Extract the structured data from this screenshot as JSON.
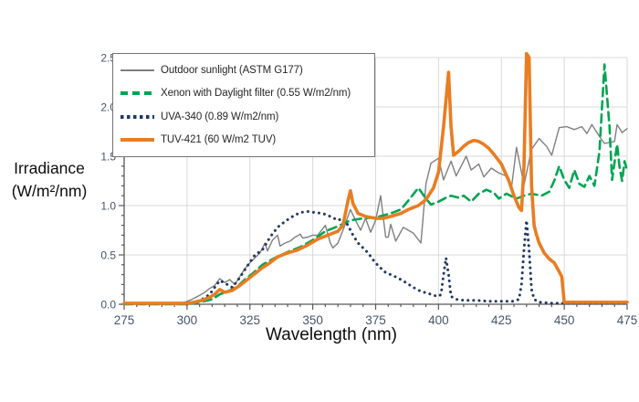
{
  "chart": {
    "y_axis_title_line1": "Irradiance",
    "y_axis_title_line2": "(W/m²/nm)",
    "x_axis_title": "Wavelength (nm)",
    "colors": {
      "grid": "#d9d9d9",
      "axis": "#595959",
      "tick_label": "#44546a",
      "legend_border": "#737373",
      "background": "#ffffff"
    }
  },
  "chart_data": {
    "type": "line",
    "title": "",
    "xlabel": "Wavelength (nm)",
    "ylabel": "Irradiance (W/m²/nm)",
    "xlim": [
      275,
      475
    ],
    "ylim": [
      0,
      2.5
    ],
    "x_ticks": [
      275,
      300,
      325,
      350,
      375,
      400,
      425,
      450,
      475
    ],
    "y_ticks": [
      "0.0",
      "0.5",
      "1.0",
      "1.5",
      "2.0",
      "2.5"
    ],
    "x_minor_step": 5,
    "y_minor_step": 0.1,
    "grid": true,
    "legend_position": "top-left-inside",
    "series": [
      {
        "name": "Outdoor sunlight (ASTM G177)",
        "color": "#7f7f7f",
        "style": "solid",
        "width": 1.4,
        "x": [
          275,
          290,
          295,
          298,
          300,
          302,
          305,
          307,
          309,
          311,
          313,
          315,
          317,
          319,
          321,
          323,
          325,
          327,
          329,
          331,
          332,
          334,
          336,
          337,
          339,
          341,
          343,
          345,
          346,
          348,
          350,
          352,
          355,
          357,
          358,
          360,
          362,
          365,
          367,
          369,
          371,
          373,
          375,
          377,
          379,
          380,
          381,
          383,
          386,
          388,
          390,
          393,
          395,
          397,
          400,
          402,
          405,
          407,
          409,
          411,
          413,
          416,
          418,
          421,
          424,
          427,
          429,
          431,
          434,
          437,
          440,
          443,
          445,
          448,
          451,
          454,
          457,
          459,
          461,
          464,
          466,
          468,
          470,
          471,
          473,
          475
        ],
        "y": [
          0,
          0,
          0,
          0.01,
          0.03,
          0.05,
          0.09,
          0.12,
          0.16,
          0.19,
          0.26,
          0.22,
          0.25,
          0.2,
          0.28,
          0.36,
          0.42,
          0.47,
          0.52,
          0.62,
          0.54,
          0.65,
          0.7,
          0.59,
          0.62,
          0.64,
          0.68,
          0.71,
          0.67,
          0.68,
          0.7,
          0.7,
          0.8,
          0.62,
          0.57,
          0.62,
          0.75,
          0.96,
          0.85,
          0.75,
          0.87,
          0.73,
          0.85,
          1.1,
          0.68,
          0.68,
          0.81,
          0.64,
          0.78,
          0.75,
          0.72,
          0.62,
          1.22,
          1.43,
          1.48,
          1.26,
          1.45,
          1.3,
          1.4,
          1.5,
          1.36,
          1.42,
          1.29,
          1.38,
          1.33,
          1.3,
          1.18,
          1.59,
          1.21,
          1.57,
          1.68,
          1.6,
          1.51,
          1.79,
          1.8,
          1.77,
          1.8,
          1.73,
          1.82,
          1.7,
          1.63,
          1.64,
          1.65,
          1.82,
          1.74,
          1.78
        ]
      },
      {
        "name": "Xenon with Daylight filter (0.55 W/m2/nm)",
        "color": "#00a551",
        "style": "dashed",
        "width": 2.6,
        "x": [
          275,
          295,
          300,
          305,
          310,
          313,
          316,
          320,
          323,
          326,
          330,
          335,
          340,
          345,
          350,
          355,
          360,
          365,
          370,
          375,
          378,
          381,
          385,
          388,
          392,
          395,
          397,
          400,
          403,
          405,
          408,
          410,
          413,
          416,
          419,
          422,
          424,
          427,
          431,
          434,
          437,
          441,
          444,
          446,
          448,
          450,
          452,
          454,
          456,
          458,
          460,
          462,
          464,
          466,
          468,
          469,
          471,
          472,
          473,
          474,
          475
        ],
        "y": [
          0,
          0,
          0,
          0.02,
          0.05,
          0.1,
          0.13,
          0.18,
          0.25,
          0.31,
          0.4,
          0.47,
          0.53,
          0.58,
          0.65,
          0.74,
          0.79,
          0.85,
          0.87,
          0.88,
          0.9,
          0.92,
          0.96,
          1.05,
          1.18,
          1.07,
          1.01,
          1.04,
          1.08,
          1.1,
          1.08,
          1.1,
          1.04,
          1.12,
          1.16,
          1.13,
          1.07,
          1.12,
          1.07,
          1.1,
          1.12,
          1.1,
          1.14,
          1.25,
          1.4,
          1.26,
          1.18,
          1.36,
          1.22,
          1.19,
          1.3,
          1.2,
          1.55,
          2.43,
          1.8,
          1.26,
          1.62,
          1.39,
          1.25,
          1.45,
          1.35
        ]
      },
      {
        "name": "UVA-340 (0.89 W/m2/nm)",
        "color": "#1f3864",
        "style": "dotted",
        "width": 3.0,
        "x": [
          300,
          303,
          306,
          309,
          313,
          316,
          318,
          321,
          323,
          327,
          330,
          333,
          336,
          339,
          342,
          345,
          348,
          351,
          354,
          357,
          360,
          362,
          364,
          366,
          368,
          370,
          372,
          374,
          376,
          379,
          382,
          385,
          387,
          390,
          393,
          396,
          398,
          400,
          401,
          402,
          403,
          404,
          405,
          407,
          410,
          415,
          420,
          425,
          430,
          432,
          433,
          434,
          435,
          436,
          437,
          438,
          440,
          445,
          450,
          460,
          470,
          475
        ],
        "y": [
          0,
          0.02,
          0.05,
          0.1,
          0.24,
          0.2,
          0.17,
          0.27,
          0.35,
          0.5,
          0.55,
          0.68,
          0.78,
          0.84,
          0.89,
          0.93,
          0.94,
          0.93,
          0.92,
          0.89,
          0.85,
          0.87,
          0.8,
          0.7,
          0.62,
          0.57,
          0.52,
          0.45,
          0.39,
          0.32,
          0.29,
          0.25,
          0.22,
          0.17,
          0.13,
          0.11,
          0.09,
          0.08,
          0.1,
          0.3,
          0.47,
          0.3,
          0.08,
          0.05,
          0.04,
          0.04,
          0.03,
          0.03,
          0.03,
          0.05,
          0.2,
          0.55,
          0.85,
          0.55,
          0.15,
          0.05,
          0.02,
          0.01,
          0.01,
          0.01,
          0.01,
          0.01
        ]
      },
      {
        "name": "TUV-421 (60 W/m2 TUV)",
        "color": "#e87d22",
        "style": "solid",
        "width": 3.6,
        "x": [
          275,
          290,
          298,
          300,
          303,
          306,
          309,
          311,
          313,
          315,
          318,
          321,
          324,
          327,
          330,
          333,
          336,
          340,
          344,
          348,
          352,
          356,
          360,
          362,
          364,
          365,
          366,
          368,
          371,
          375,
          378,
          381,
          385,
          388,
          392,
          395,
          398,
          400,
          402,
          404,
          405,
          406,
          408,
          410,
          412,
          414,
          416,
          418,
          420,
          422,
          425,
          428,
          430,
          432,
          433,
          434,
          435,
          436,
          437,
          438,
          439,
          440,
          442,
          444,
          446,
          448,
          449,
          450,
          455,
          460,
          470,
          475
        ],
        "y": [
          0.01,
          0.01,
          0.01,
          0.01,
          0.02,
          0.04,
          0.07,
          0.1,
          0.15,
          0.12,
          0.14,
          0.19,
          0.25,
          0.31,
          0.37,
          0.42,
          0.48,
          0.52,
          0.55,
          0.6,
          0.66,
          0.7,
          0.74,
          0.8,
          1.05,
          1.15,
          1.02,
          0.92,
          0.89,
          0.87,
          0.87,
          0.89,
          0.92,
          0.96,
          1.0,
          1.06,
          1.18,
          1.34,
          1.8,
          2.35,
          1.8,
          1.51,
          1.55,
          1.6,
          1.64,
          1.66,
          1.65,
          1.62,
          1.58,
          1.52,
          1.42,
          1.25,
          1.1,
          0.98,
          0.95,
          1.4,
          2.54,
          2.5,
          1.2,
          0.8,
          0.7,
          0.62,
          0.52,
          0.46,
          0.42,
          0.33,
          0.28,
          0.02,
          0.02,
          0.02,
          0.02,
          0.02
        ]
      }
    ]
  }
}
